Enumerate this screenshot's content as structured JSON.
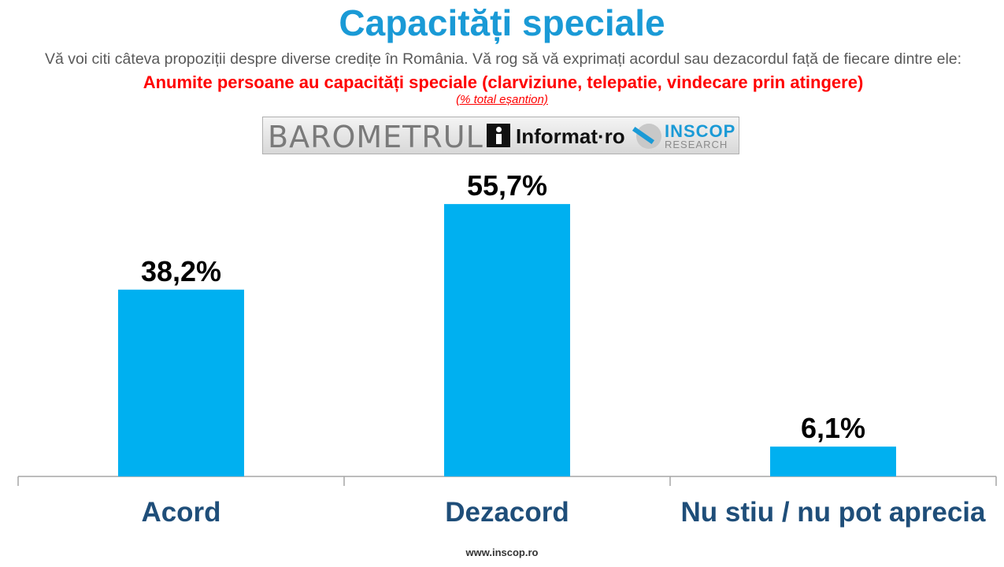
{
  "title": "Capacități speciale",
  "subtitle_lead": "Vă voi citi câteva propoziții despre diverse credițe în România. Vă rog să vă exprimați acordul sau dezacordul față de fiecare dintre ele: ",
  "subtitle_question": "Anumite persoane au capacități speciale (clarviziune, telepatie, vindecare prin atingere)",
  "note": "(% total eșantion)",
  "banner": {
    "barometrul": "BAROMETRUL",
    "informat": "Informat·ro",
    "inscop": "INSCOP",
    "research": "RESEARCH"
  },
  "footer": "www.inscop.ro",
  "colors": {
    "title": "#1a9ad6",
    "bar": "#00b0f0",
    "category_label": "#1f4e79",
    "question": "#ff0000"
  },
  "chart_data": {
    "type": "bar",
    "categories": [
      "Acord",
      "Dezacord",
      "Nu stiu / nu pot aprecia"
    ],
    "values": [
      38.2,
      55.7,
      6.1
    ],
    "value_labels": [
      "38,2%",
      "55,7%",
      "6,1%"
    ],
    "unit": "%",
    "ylim": [
      0,
      62
    ],
    "grid": false,
    "legend": "none"
  }
}
